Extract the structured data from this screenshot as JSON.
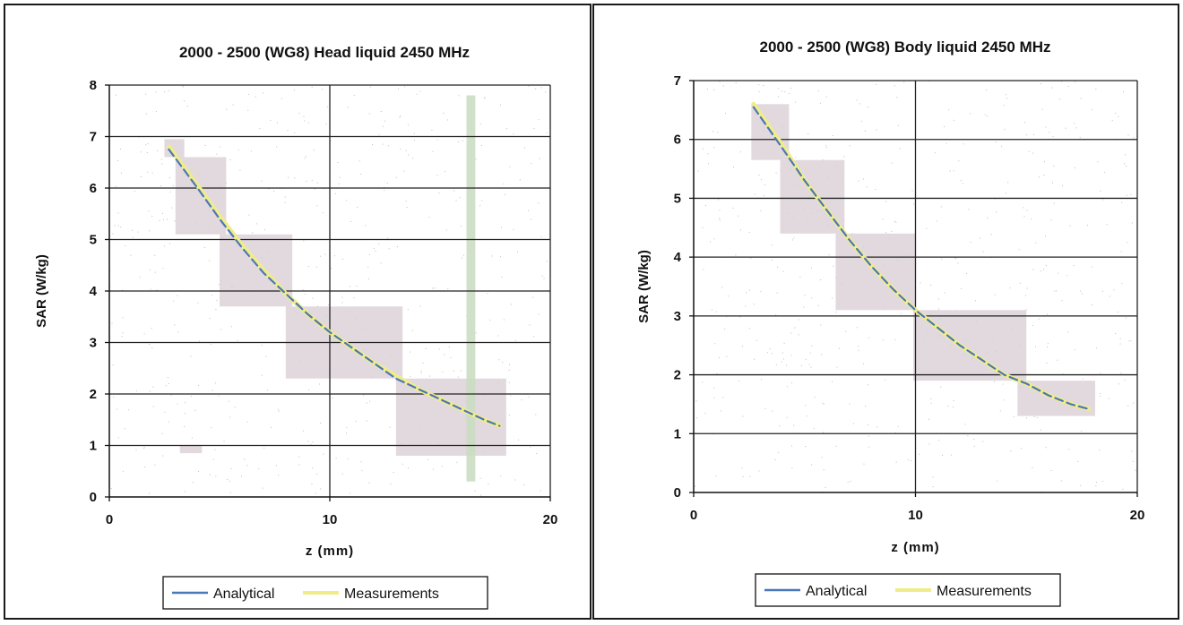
{
  "chart_data": [
    {
      "type": "line",
      "title": "2000 - 2500 (WG8) Head liquid 2450 MHz",
      "xlabel": "z (mm)",
      "ylabel": "SAR (W/kg)",
      "xlim": [
        0,
        20
      ],
      "ylim": [
        0,
        8
      ],
      "xticks": [
        0,
        10,
        20
      ],
      "yticks": [
        0,
        1,
        2,
        3,
        4,
        5,
        6,
        7,
        8
      ],
      "grid": true,
      "legend": "bottom",
      "series": [
        {
          "name": "Analytical",
          "color": "#4a78b8",
          "x": [
            2.7,
            4,
            5,
            6,
            7,
            8,
            9,
            10,
            11,
            12,
            13,
            14,
            15,
            16,
            17,
            17.7
          ],
          "values": [
            6.75,
            6.0,
            5.4,
            4.85,
            4.35,
            3.95,
            3.55,
            3.2,
            2.9,
            2.6,
            2.3,
            2.1,
            1.9,
            1.7,
            1.5,
            1.38
          ]
        },
        {
          "name": "Measurements",
          "color": "#f0ec8a",
          "x": [
            2.7,
            4,
            5,
            6,
            7,
            8,
            9,
            10,
            11,
            12,
            13,
            14,
            15,
            16,
            17,
            17.7
          ],
          "values": [
            6.8,
            6.05,
            5.45,
            4.9,
            4.4,
            3.95,
            3.55,
            3.2,
            2.9,
            2.6,
            2.35,
            2.1,
            1.9,
            1.7,
            1.5,
            1.38
          ]
        }
      ]
    },
    {
      "type": "line",
      "title": "2000 - 2500 (WG8) Body liquid 2450 MHz",
      "xlabel": "z (mm)",
      "ylabel": "SAR (W/kg)",
      "xlim": [
        0,
        20
      ],
      "ylim": [
        0,
        7
      ],
      "xticks": [
        0,
        10,
        20
      ],
      "yticks": [
        0,
        1,
        2,
        3,
        4,
        5,
        6,
        7
      ],
      "grid": true,
      "legend": "bottom",
      "series": [
        {
          "name": "Analytical",
          "color": "#4a78b8",
          "x": [
            2.7,
            4,
            5,
            6,
            7,
            8,
            9,
            10,
            11,
            12,
            13,
            14,
            15,
            16,
            17,
            17.8
          ],
          "values": [
            6.55,
            5.85,
            5.3,
            4.8,
            4.3,
            3.85,
            3.45,
            3.1,
            2.8,
            2.5,
            2.25,
            2.0,
            1.85,
            1.65,
            1.5,
            1.42
          ]
        },
        {
          "name": "Measurements",
          "color": "#f0ec8a",
          "x": [
            2.7,
            4,
            5,
            6,
            7,
            8,
            9,
            10,
            11,
            12,
            13,
            14,
            15,
            16,
            17,
            17.8
          ],
          "values": [
            6.6,
            5.9,
            5.3,
            4.8,
            4.3,
            3.85,
            3.45,
            3.1,
            2.8,
            2.5,
            2.25,
            2.0,
            1.85,
            1.65,
            1.5,
            1.42
          ]
        }
      ]
    }
  ]
}
